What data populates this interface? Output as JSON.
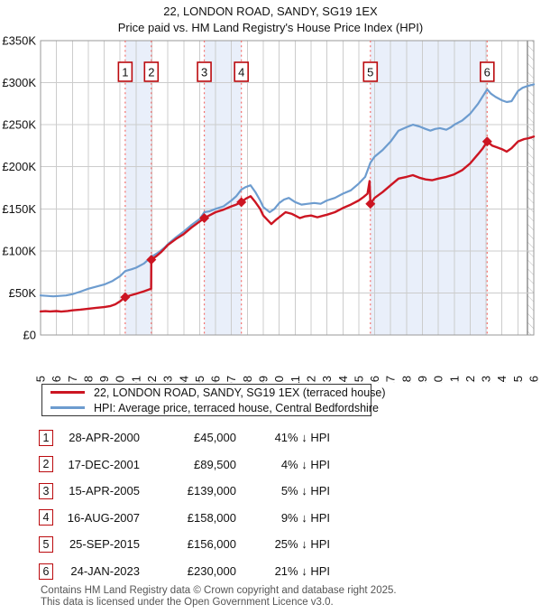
{
  "header": {
    "title": "22, LONDON ROAD, SANDY, SG19 1EX",
    "subtitle": "Price paid vs. HM Land Registry's House Price Index (HPI)"
  },
  "legend": {
    "items": [
      {
        "label": "22, LONDON ROAD, SANDY, SG19 1EX (terraced house)",
        "color": "#cc1522"
      },
      {
        "label": "HPI: Average price, terraced house, Central Bedfordshire",
        "color": "#6d9ccf"
      }
    ]
  },
  "transactions": [
    {
      "n": "1",
      "date": "28-APR-2000",
      "price": "£45,000",
      "hpi_diff": "41% ↓ HPI",
      "year": 2000.32,
      "value_k": 45
    },
    {
      "n": "2",
      "date": "17-DEC-2001",
      "price": "£89,500",
      "hpi_diff": "4% ↓ HPI",
      "year": 2001.96,
      "value_k": 89.5
    },
    {
      "n": "3",
      "date": "15-APR-2005",
      "price": "£139,000",
      "hpi_diff": "5% ↓ HPI",
      "year": 2005.29,
      "value_k": 139
    },
    {
      "n": "4",
      "date": "16-AUG-2007",
      "price": "£158,000",
      "hpi_diff": "9% ↓ HPI",
      "year": 2007.62,
      "value_k": 158
    },
    {
      "n": "5",
      "date": "25-SEP-2015",
      "price": "£156,000",
      "hpi_diff": "25% ↓ HPI",
      "year": 2015.73,
      "value_k": 156
    },
    {
      "n": "6",
      "date": "24-JAN-2023",
      "price": "£230,000",
      "hpi_diff": "21% ↓ HPI",
      "year": 2023.07,
      "value_k": 230
    }
  ],
  "footer": {
    "line1": "Contains HM Land Registry data © Crown copyright and database right 2025.",
    "line2": "This data is licensed under the Open Government Licence v3.0."
  },
  "chart_data": {
    "type": "line",
    "title": "22, LONDON ROAD, SANDY, SG19 1EX",
    "subtitle": "Price paid vs. HM Land Registry's House Price Index (HPI)",
    "xlim": [
      1995,
      2026
    ],
    "ylim_k": [
      0,
      350
    ],
    "xticks": [
      1995,
      1996,
      1997,
      1998,
      1999,
      2000,
      2001,
      2002,
      2003,
      2004,
      2005,
      2006,
      2007,
      2008,
      2009,
      2010,
      2011,
      2012,
      2013,
      2014,
      2015,
      2016,
      2017,
      2018,
      2019,
      2020,
      2021,
      2022,
      2023,
      2024,
      2025,
      2026
    ],
    "yticks": [
      {
        "label": "£0",
        "value_k": 0
      },
      {
        "label": "£50K",
        "value_k": 50
      },
      {
        "label": "£100K",
        "value_k": 100
      },
      {
        "label": "£150K",
        "value_k": 150
      },
      {
        "label": "£200K",
        "value_k": 200
      },
      {
        "label": "£250K",
        "value_k": 250
      },
      {
        "label": "£300K",
        "value_k": 300
      },
      {
        "label": "£350K",
        "value_k": 350
      }
    ],
    "grid": true,
    "legend_position": "below",
    "band_color": "#e9effa",
    "grid_color": "#cccccc",
    "border_color": "#9a9a9a",
    "dashed_line_color": "#f4716e",
    "hatch_start_year": 2025.6,
    "ownership_bands": [
      [
        2000.32,
        2001.96
      ],
      [
        2005.29,
        2007.62
      ],
      [
        2015.73,
        2023.07
      ]
    ],
    "series": [
      {
        "name": "HPI: Average price, terraced house, Central Bedfordshire",
        "color": "#6d9ccf",
        "width": 2.2,
        "points": [
          [
            1995.0,
            47
          ],
          [
            1995.4,
            46.5
          ],
          [
            1995.8,
            46
          ],
          [
            1996.2,
            46.5
          ],
          [
            1996.6,
            47
          ],
          [
            1997.0,
            48.5
          ],
          [
            1997.5,
            51.5
          ],
          [
            1998.0,
            55
          ],
          [
            1998.5,
            57.5
          ],
          [
            1999.0,
            60
          ],
          [
            1999.5,
            64
          ],
          [
            2000.0,
            70
          ],
          [
            2000.32,
            76
          ],
          [
            2000.7,
            78
          ],
          [
            2001.0,
            80
          ],
          [
            2001.5,
            85
          ],
          [
            2001.96,
            93
          ],
          [
            2002.4,
            98
          ],
          [
            2002.8,
            104
          ],
          [
            2003.0,
            108
          ],
          [
            2003.5,
            116
          ],
          [
            2004.0,
            123
          ],
          [
            2004.5,
            131
          ],
          [
            2005.0,
            138
          ],
          [
            2005.29,
            146
          ],
          [
            2005.6,
            147
          ],
          [
            2006.0,
            150
          ],
          [
            2006.5,
            153
          ],
          [
            2007.0,
            160
          ],
          [
            2007.3,
            165
          ],
          [
            2007.62,
            173
          ],
          [
            2007.9,
            176
          ],
          [
            2008.2,
            178
          ],
          [
            2008.5,
            170
          ],
          [
            2008.8,
            160
          ],
          [
            2009.0,
            152
          ],
          [
            2009.4,
            146
          ],
          [
            2009.7,
            150
          ],
          [
            2010.0,
            157
          ],
          [
            2010.3,
            161
          ],
          [
            2010.6,
            163
          ],
          [
            2011.0,
            158
          ],
          [
            2011.4,
            155
          ],
          [
            2011.8,
            156
          ],
          [
            2012.2,
            157
          ],
          [
            2012.6,
            156
          ],
          [
            2013.0,
            160
          ],
          [
            2013.5,
            163
          ],
          [
            2014.0,
            168
          ],
          [
            2014.5,
            172
          ],
          [
            2015.0,
            180
          ],
          [
            2015.4,
            188
          ],
          [
            2015.73,
            205
          ],
          [
            2016.0,
            212
          ],
          [
            2016.5,
            220
          ],
          [
            2017.0,
            230
          ],
          [
            2017.5,
            243
          ],
          [
            2018.0,
            247
          ],
          [
            2018.4,
            250
          ],
          [
            2018.8,
            248
          ],
          [
            2019.2,
            245
          ],
          [
            2019.5,
            243
          ],
          [
            2019.8,
            245
          ],
          [
            2020.1,
            246
          ],
          [
            2020.5,
            244
          ],
          [
            2020.8,
            247
          ],
          [
            2021.0,
            250
          ],
          [
            2021.5,
            255
          ],
          [
            2022.0,
            263
          ],
          [
            2022.5,
            275
          ],
          [
            2022.8,
            284
          ],
          [
            2023.07,
            292
          ],
          [
            2023.3,
            287
          ],
          [
            2023.6,
            283
          ],
          [
            2024.0,
            279
          ],
          [
            2024.3,
            277
          ],
          [
            2024.6,
            278
          ],
          [
            2025.0,
            290
          ],
          [
            2025.3,
            294
          ],
          [
            2025.6,
            296
          ],
          [
            2026.0,
            298
          ]
        ]
      },
      {
        "name": "22, LONDON ROAD, SANDY, SG19 1EX (terraced house)",
        "color": "#cc1522",
        "width": 2.4,
        "points": [
          [
            1995.0,
            28
          ],
          [
            1995.3,
            28.3
          ],
          [
            1995.6,
            28
          ],
          [
            1996.0,
            28.4
          ],
          [
            1996.3,
            27.8
          ],
          [
            1996.7,
            28.6
          ],
          [
            1997.0,
            29.3
          ],
          [
            1997.5,
            30.2
          ],
          [
            1998.0,
            31.2
          ],
          [
            1998.5,
            32.3
          ],
          [
            1999.0,
            33.2
          ],
          [
            1999.4,
            34.5
          ],
          [
            1999.7,
            36.5
          ],
          [
            2000.0,
            40
          ],
          [
            2000.32,
            45
          ],
          [
            2000.6,
            46.8
          ],
          [
            2001.0,
            49
          ],
          [
            2001.5,
            52
          ],
          [
            2001.95,
            55
          ],
          [
            2001.96,
            89.5
          ],
          [
            2002.3,
            94
          ],
          [
            2002.6,
            99
          ],
          [
            2003.0,
            107
          ],
          [
            2003.5,
            114
          ],
          [
            2004.0,
            120
          ],
          [
            2004.5,
            128
          ],
          [
            2005.0,
            135
          ],
          [
            2005.29,
            139
          ],
          [
            2005.6,
            142
          ],
          [
            2006.0,
            146
          ],
          [
            2006.5,
            149
          ],
          [
            2007.0,
            153
          ],
          [
            2007.3,
            155
          ],
          [
            2007.62,
            158
          ],
          [
            2007.9,
            162
          ],
          [
            2008.2,
            165
          ],
          [
            2008.5,
            158
          ],
          [
            2008.8,
            150
          ],
          [
            2009.0,
            142
          ],
          [
            2009.5,
            132
          ],
          [
            2009.8,
            137
          ],
          [
            2010.0,
            140
          ],
          [
            2010.4,
            146
          ],
          [
            2010.8,
            144
          ],
          [
            2011.0,
            142
          ],
          [
            2011.3,
            139
          ],
          [
            2011.6,
            141
          ],
          [
            2012.0,
            142
          ],
          [
            2012.4,
            140
          ],
          [
            2012.8,
            142
          ],
          [
            2013.0,
            143
          ],
          [
            2013.5,
            146
          ],
          [
            2014.0,
            151
          ],
          [
            2014.5,
            155
          ],
          [
            2015.0,
            160
          ],
          [
            2015.3,
            164
          ],
          [
            2015.55,
            168
          ],
          [
            2015.68,
            183
          ],
          [
            2015.73,
            156
          ],
          [
            2016.0,
            163
          ],
          [
            2016.5,
            170
          ],
          [
            2017.0,
            178
          ],
          [
            2017.5,
            186
          ],
          [
            2018.0,
            188
          ],
          [
            2018.4,
            190
          ],
          [
            2018.8,
            187
          ],
          [
            2019.2,
            185
          ],
          [
            2019.6,
            184
          ],
          [
            2020.0,
            186
          ],
          [
            2020.5,
            188
          ],
          [
            2021.0,
            191
          ],
          [
            2021.5,
            196
          ],
          [
            2022.0,
            204
          ],
          [
            2022.5,
            215
          ],
          [
            2022.8,
            222
          ],
          [
            2023.07,
            230
          ],
          [
            2023.4,
            225
          ],
          [
            2023.7,
            223
          ],
          [
            2024.0,
            221
          ],
          [
            2024.3,
            218
          ],
          [
            2024.6,
            222
          ],
          [
            2025.0,
            230
          ],
          [
            2025.4,
            233
          ],
          [
            2025.7,
            234
          ],
          [
            2026.0,
            236
          ]
        ]
      }
    ],
    "markers": {
      "shape": "diamond",
      "color": "#cc1522",
      "number_box_border": "#bb0a0e",
      "points_from": "transactions"
    }
  }
}
